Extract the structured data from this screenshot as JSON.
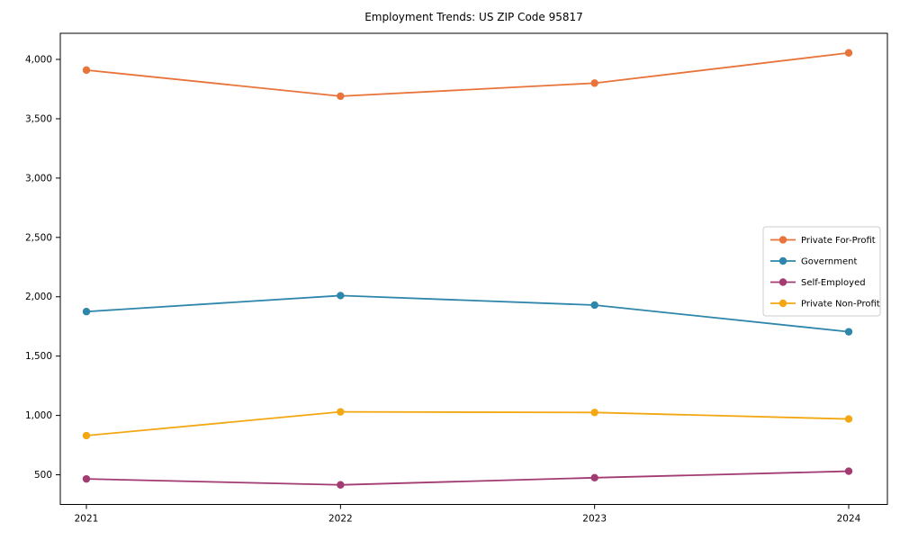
{
  "chart_data": {
    "type": "line",
    "title": "Employment Trends: US ZIP Code 95817",
    "categories": [
      "2021",
      "2022",
      "2023",
      "2024"
    ],
    "series": [
      {
        "name": "Private For-Profit",
        "color": "#e8743b",
        "values": [
          3910,
          3690,
          3800,
          4055
        ]
      },
      {
        "name": "Government",
        "color": "#2e86ab",
        "values": [
          1875,
          2010,
          1930,
          1705
        ]
      },
      {
        "name": "Self-Employed",
        "color": "#a23b72",
        "values": [
          465,
          415,
          475,
          530
        ]
      },
      {
        "name": "Private Non-Profit",
        "color": "#f3a712",
        "values": [
          830,
          1030,
          1025,
          970
        ]
      }
    ],
    "xlabel": "",
    "ylabel": "",
    "ylim": [
      250,
      4220
    ],
    "yticks": [
      500,
      1000,
      1500,
      2000,
      2500,
      3000,
      3500,
      4000
    ],
    "ytick_labels": [
      "500",
      "1,000",
      "1,500",
      "2,000",
      "2,500",
      "3,000",
      "3,500",
      "4,000"
    ],
    "grid": false,
    "marker": "circle",
    "legend_position": "center right",
    "appearance": {
      "background": "#ffffff",
      "axis_color": "#000000",
      "tick_label_color": "#000000",
      "legend_border_color": "#cccccc",
      "legend_background": "#ffffff"
    }
  }
}
